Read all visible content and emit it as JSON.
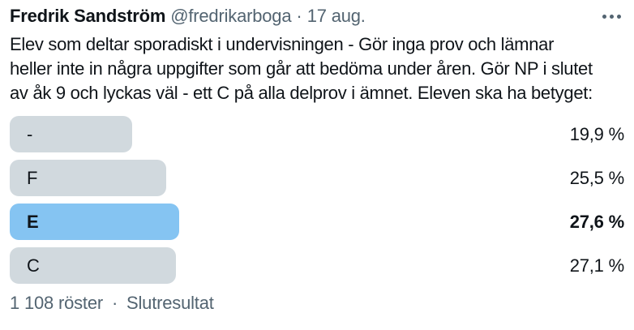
{
  "colors": {
    "text": "#0f1419",
    "muted": "#536471",
    "bar_gray": "#d1d9de",
    "bar_blue": "#85c4f2"
  },
  "header": {
    "display_name": "Fredrik Sandström",
    "handle": "@fredrikarboga",
    "separator": "·",
    "date": "17 aug.",
    "more_icon": "more-horizontal-dots"
  },
  "tweet": {
    "lines": [
      "Elev som deltar sporadiskt i undervisningen - Gör inga prov och lämnar",
      "heller inte in några uppgifter som går att bedöma under åren. Gör NP i slutet",
      "av åk 9 och lyckas väl - ett C på alla delprov i ämnet. Eleven ska ha betyget:"
    ]
  },
  "poll": {
    "options": [
      {
        "label": "-",
        "percent_label": "19,9 %",
        "value": 19.9,
        "winner": false
      },
      {
        "label": "F",
        "percent_label": "25,5 %",
        "value": 25.5,
        "winner": false
      },
      {
        "label": "E",
        "percent_label": "27,6 %",
        "value": 27.6,
        "winner": true
      },
      {
        "label": "C",
        "percent_label": "27,1 %",
        "value": 27.1,
        "winner": false
      }
    ],
    "votes_label": "1 108 röster",
    "separator": "·",
    "status_label": "Slutresultat"
  },
  "chart_data": {
    "type": "bar",
    "orientation": "horizontal",
    "categories": [
      "-",
      "F",
      "E",
      "C"
    ],
    "values": [
      19.9,
      25.5,
      27.6,
      27.1
    ],
    "value_suffix": " %",
    "decimal_separator": ",",
    "highlighted_category": "E",
    "title": "Elev som deltar sporadiskt i undervisningen - Gör inga prov och lämnar heller inte in några uppgifter som går att bedöma under åren. Gör NP i slutet av åk 9 och lyckas väl - ett C på alla delprov i ämnet. Eleven ska ha betyget:",
    "xlabel": "",
    "ylabel": "",
    "xlim": [
      0,
      100
    ],
    "grid": false,
    "legend": false,
    "total_votes_label": "1 108 röster",
    "status_label": "Slutresultat"
  }
}
